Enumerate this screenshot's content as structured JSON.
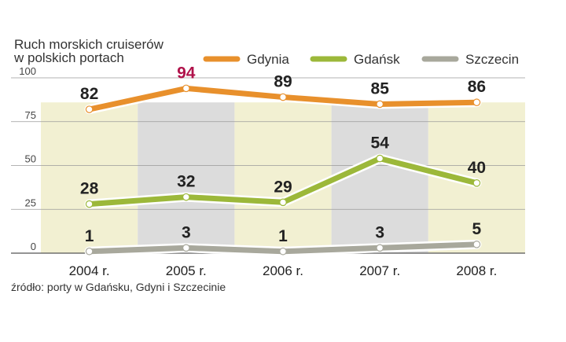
{
  "chart_data": {
    "type": "line",
    "title_lines": [
      "Ruch morskich cruiserów",
      "w polskich portach"
    ],
    "categories": [
      "2004 r.",
      "2005 r.",
      "2006 r.",
      "2007 r.",
      "2008 r."
    ],
    "series": [
      {
        "name": "Gdynia",
        "values": [
          82,
          94,
          89,
          85,
          86
        ],
        "color": "#e8902c",
        "labels": [
          "82",
          "94",
          "89",
          "85",
          "86"
        ],
        "label_colors": [
          "#222222",
          "#b0124a",
          "#222222",
          "#222222",
          "#222222"
        ]
      },
      {
        "name": "Gdańsk",
        "values": [
          28,
          32,
          29,
          54,
          40
        ],
        "color": "#9cb83a",
        "labels": [
          "28",
          "32",
          "29",
          "54",
          "40"
        ],
        "label_colors": [
          "#222222",
          "#222222",
          "#222222",
          "#222222",
          "#222222"
        ]
      },
      {
        "name": "Szczecin",
        "values": [
          1,
          3,
          1,
          3,
          5
        ],
        "color": "#a8a89c",
        "labels": [
          "1",
          "3",
          "1",
          "3",
          "5"
        ],
        "label_colors": [
          "#222222",
          "#222222",
          "#222222",
          "#222222",
          "#222222"
        ]
      }
    ],
    "yticks": [
      0,
      25,
      50,
      75,
      100
    ],
    "ylim": [
      0,
      100
    ],
    "grid": true,
    "legend": "top-right",
    "source": "źródło: porty w Gdańsku, Gdyni i Szczecinie",
    "colors": {
      "band_light": "#f2f0d2",
      "band_grey": "#dcdcdc",
      "grid": "#9a9a9a",
      "axis": "#555555"
    }
  }
}
